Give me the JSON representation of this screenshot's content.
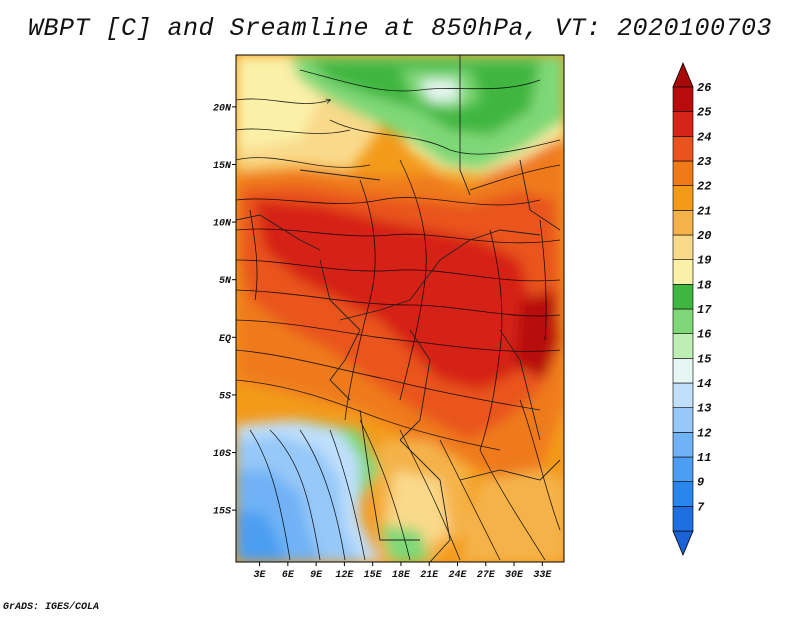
{
  "title": "WBPT [C] and Sreamline at 850hPa, VT: 2020100703",
  "credit": "GrADS: IGES/COLA",
  "lat_ticks": [
    {
      "value": 20,
      "label": "20N"
    },
    {
      "value": 15,
      "label": "15N"
    },
    {
      "value": 10,
      "label": "10N"
    },
    {
      "value": 5,
      "label": "5N"
    },
    {
      "value": 0,
      "label": "EQ"
    },
    {
      "value": -5,
      "label": "5S"
    },
    {
      "value": -10,
      "label": "10S"
    },
    {
      "value": -15,
      "label": "15S"
    }
  ],
  "lon_ticks": [
    {
      "value": 3,
      "label": "3E"
    },
    {
      "value": 6,
      "label": "6E"
    },
    {
      "value": 9,
      "label": "9E"
    },
    {
      "value": 12,
      "label": "12E"
    },
    {
      "value": 15,
      "label": "15E"
    },
    {
      "value": 18,
      "label": "18E"
    },
    {
      "value": 21,
      "label": "21E"
    },
    {
      "value": 24,
      "label": "24E"
    },
    {
      "value": 27,
      "label": "27E"
    },
    {
      "value": 30,
      "label": "30E"
    },
    {
      "value": 33,
      "label": "33E"
    }
  ],
  "extent": {
    "lon": [
      0.5,
      35.3
    ],
    "lat": [
      -19.5,
      24.5
    ]
  },
  "colorbar": [
    {
      "label": "7",
      "color": "#1e6fe0"
    },
    {
      "label": "9",
      "color": "#2a86ea"
    },
    {
      "label": "11",
      "color": "#4c9ef2"
    },
    {
      "label": "12",
      "color": "#6fb2f5"
    },
    {
      "label": "13",
      "color": "#96c8f8"
    },
    {
      "label": "14",
      "color": "#bfdffb"
    },
    {
      "label": "15",
      "color": "#e6f6f2"
    },
    {
      "label": "16",
      "color": "#bdeeb3"
    },
    {
      "label": "17",
      "color": "#7fd877"
    },
    {
      "label": "18",
      "color": "#3fb63f"
    },
    {
      "label": "19",
      "color": "#fbf0a8"
    },
    {
      "label": "20",
      "color": "#f9d98a"
    },
    {
      "label": "21",
      "color": "#f5b24a"
    },
    {
      "label": "22",
      "color": "#f39a1a"
    },
    {
      "label": "23",
      "color": "#ef7a1a"
    },
    {
      "label": "24",
      "color": "#e9541e"
    },
    {
      "label": "25",
      "color": "#d62418"
    },
    {
      "label": "26",
      "color": "#b80c0c"
    }
  ],
  "colorbar_low_arrow_color": "#1a62d6",
  "colorbar_high_arrow_color": "#a80a0a"
}
